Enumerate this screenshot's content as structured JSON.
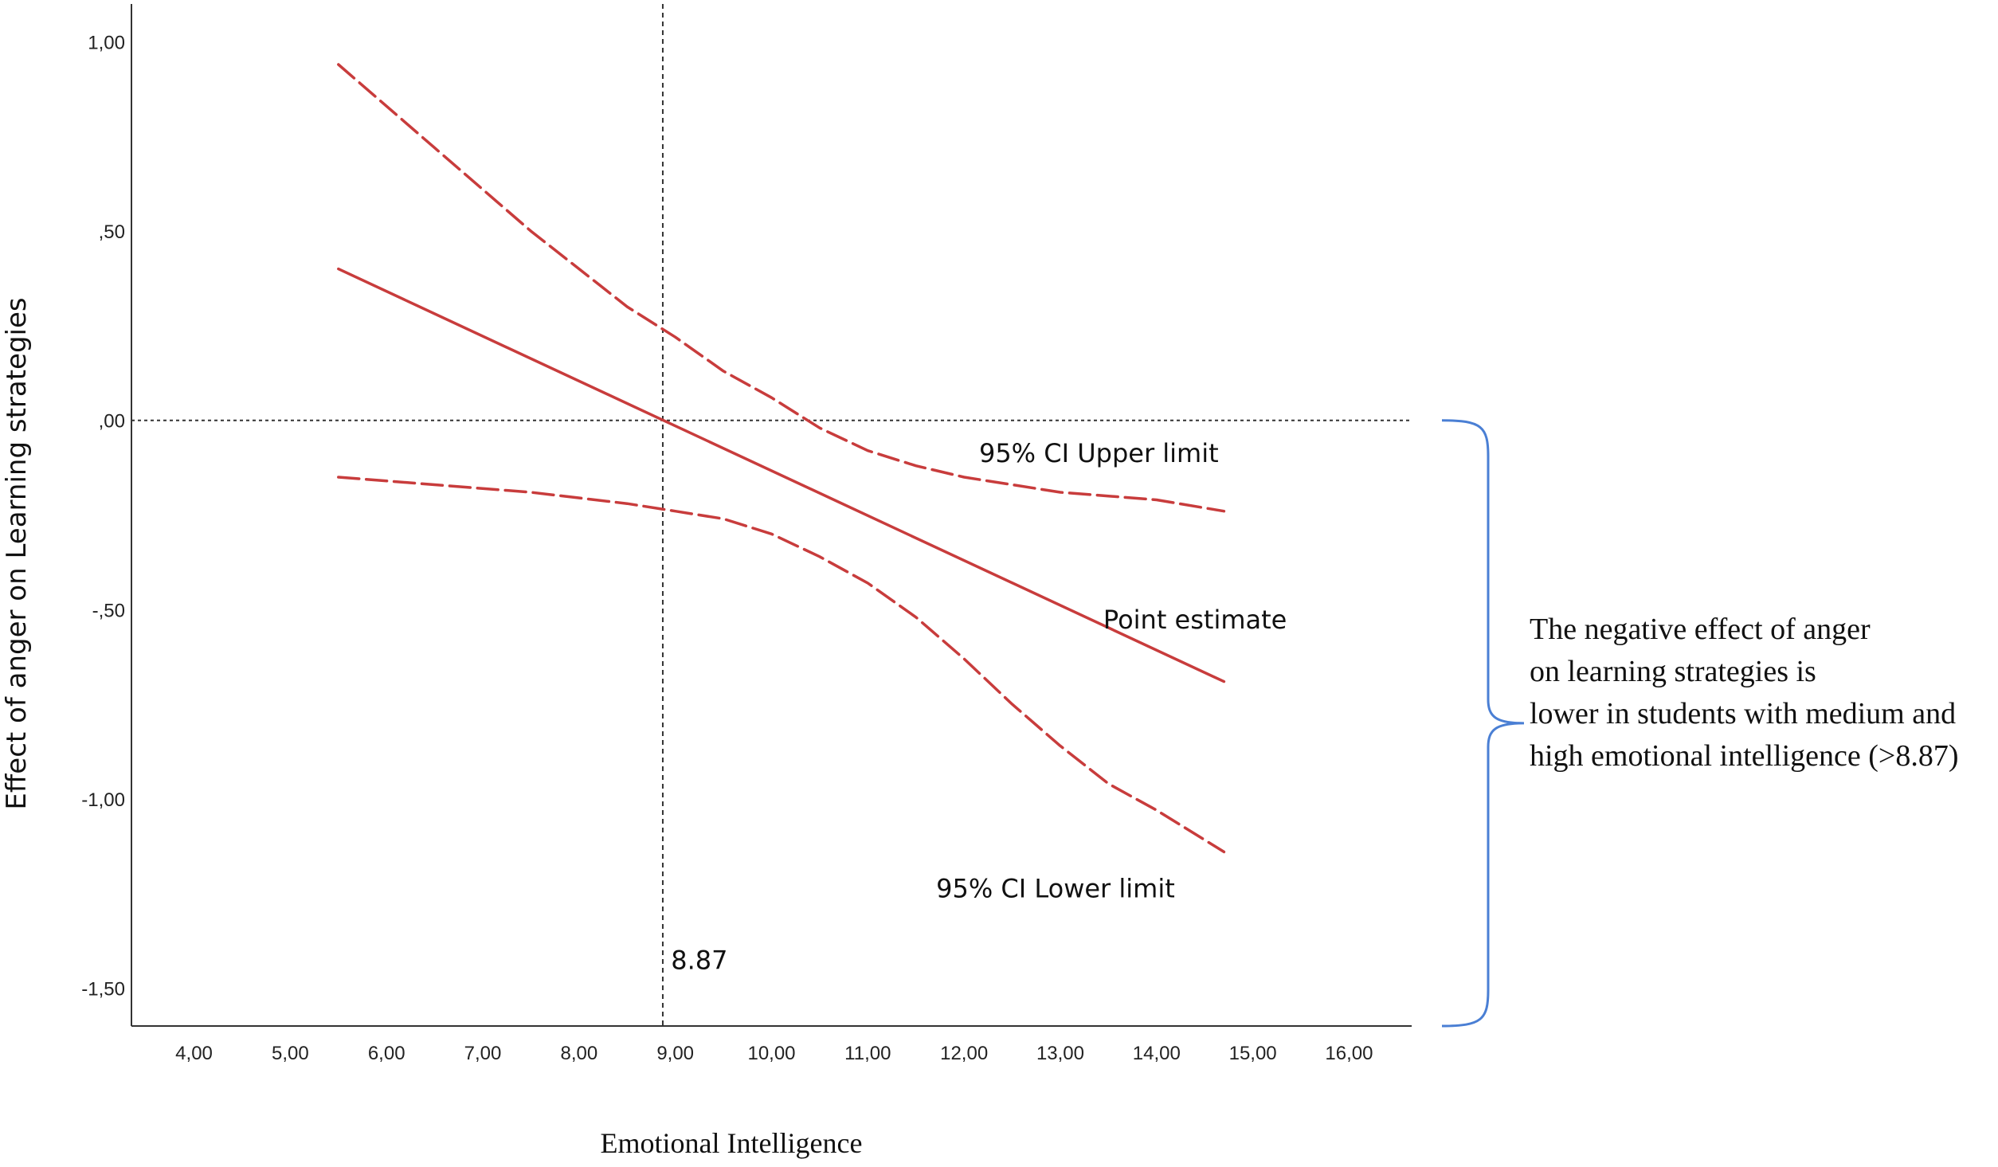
{
  "chart_data": {
    "type": "line",
    "title": "",
    "xlabel": "Emotional Intelligence",
    "ylabel": "Effect of anger on Learning strategies",
    "xlim": [
      3.35,
      16.65
    ],
    "ylim": [
      -1.6,
      1.1
    ],
    "x_ticks": [
      4,
      5,
      6,
      7,
      8,
      9,
      10,
      11,
      12,
      13,
      14,
      15,
      16
    ],
    "x_tick_labels": [
      "4,00",
      "5,00",
      "6,00",
      "7,00",
      "8,00",
      "9,00",
      "10,00",
      "11,00",
      "12,00",
      "13,00",
      "14,00",
      "15,00",
      "16,00"
    ],
    "y_ticks": [
      1.0,
      0.5,
      0.0,
      -0.5,
      -1.0,
      -1.5
    ],
    "y_tick_labels": [
      "1,00",
      ",50",
      ",00",
      "-,50",
      "-1,00",
      "-1,50"
    ],
    "grid": false,
    "reference_lines": {
      "x": 8.87,
      "y": 0.0
    },
    "series": [
      {
        "name": "95% CI Upper limit",
        "color": "#c83c3c",
        "dashed": true,
        "x": [
          5.5,
          6.5,
          7.5,
          8.5,
          9.0,
          9.5,
          10.0,
          10.5,
          11.0,
          11.5,
          12.0,
          12.5,
          13.0,
          13.5,
          14.0,
          14.7
        ],
        "values": [
          0.94,
          0.72,
          0.5,
          0.3,
          0.22,
          0.13,
          0.06,
          -0.02,
          -0.08,
          -0.12,
          -0.15,
          -0.17,
          -0.19,
          -0.2,
          -0.21,
          -0.24
        ]
      },
      {
        "name": "Point estimate",
        "color": "#c83c3c",
        "dashed": false,
        "x": [
          5.5,
          14.7
        ],
        "values": [
          0.4,
          -0.69
        ]
      },
      {
        "name": "95% CI Lower limit",
        "color": "#c83c3c",
        "dashed": true,
        "x": [
          5.5,
          6.5,
          7.5,
          8.5,
          9.0,
          9.5,
          10.0,
          10.5,
          11.0,
          11.5,
          12.0,
          12.5,
          13.0,
          13.5,
          14.0,
          14.7
        ],
        "values": [
          -0.15,
          -0.17,
          -0.19,
          -0.22,
          -0.24,
          -0.26,
          -0.3,
          -0.36,
          -0.43,
          -0.52,
          -0.63,
          -0.75,
          -0.86,
          -0.96,
          -1.03,
          -1.14
        ]
      }
    ],
    "annotations": [
      {
        "text": "95% CI Upper limit",
        "x": 13.4,
        "y": -0.11
      },
      {
        "text": "Point estimate",
        "x": 14.4,
        "y": -0.55
      },
      {
        "text": "95% CI Lower limit",
        "x": 12.95,
        "y": -1.26
      },
      {
        "text": "8.87",
        "x": 9.25,
        "y": -1.45
      }
    ],
    "bracket": {
      "color": "#4a7fd4",
      "y_top": 0.0,
      "y_bottom": -1.6,
      "note_lines": [
        "The negative effect of anger",
        "on learning strategies is",
        "lower in students with medium and",
        "high emotional intelligence (>8.87)"
      ]
    }
  }
}
